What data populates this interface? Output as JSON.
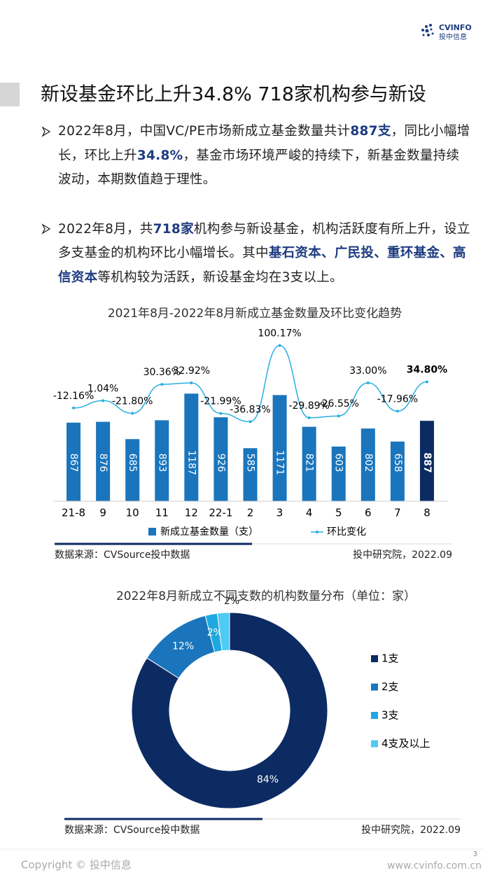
{
  "header": {
    "logo_top": "CVINFO",
    "logo_bottom": "投中信息"
  },
  "title": "新设基金环比上升34.8% 718家机构参与新设",
  "paragraphs": [
    [
      "2022年8月，中国VC/PE市场新成立基金数量共计",
      "887支",
      "，同比小幅增长，环比上升",
      "34.8%",
      "，基金市场环境严峻的持续下，新基金数量持续波动，本期数值趋于理性。"
    ],
    [
      "2022年8月，共",
      "718家",
      "机构参与新设基金，机构活跃度有所上升，设立多支基金的机构环比小幅增长。其中",
      "基石资本、广民投、重环基金、高信资本",
      "等机构较为活跃，新设基金均在3支以上。"
    ]
  ],
  "chart_data": [
    {
      "type": "bar",
      "title": "2021年8月-2022年8月新成立基金数量及环比变化趋势",
      "categories": [
        "21-8",
        "9",
        "10",
        "11",
        "12",
        "22-1",
        "2",
        "3",
        "4",
        "5",
        "6",
        "7",
        "8"
      ],
      "ylim": [
        0,
        1900
      ],
      "y2lim": [
        -180,
        130
      ],
      "series": [
        {
          "name": "新成立基金数量（支）",
          "type": "bar",
          "color": "#1a75bc",
          "colors": [
            "#1a75bc",
            "#1a75bc",
            "#1a75bc",
            "#1a75bc",
            "#1a75bc",
            "#1a75bc",
            "#1a75bc",
            "#1a75bc",
            "#1a75bc",
            "#1a75bc",
            "#1a75bc",
            "#1a75bc",
            "#0d2b63"
          ],
          "values": [
            867,
            876,
            685,
            893,
            1187,
            926,
            585,
            1171,
            821,
            603,
            802,
            658,
            887
          ]
        },
        {
          "name": "环比变化",
          "type": "line",
          "axis": "y2",
          "color": "#2aaee0",
          "values": [
            -12.16,
            1.04,
            -21.8,
            30.36,
            32.92,
            -21.99,
            -36.83,
            100.17,
            -29.89,
            -26.55,
            33.0,
            -17.96,
            34.8
          ],
          "value_labels": [
            "-12.16%",
            "1.04%",
            "-21.80%",
            "30.36%",
            "32.92%",
            "-21.99%",
            "-36.83%",
            "100.17%",
            "-29.89%",
            "-26.55%",
            "33.00%",
            "-17.96%",
            "34.80%"
          ]
        }
      ],
      "source": "数据来源：CVSource投中数据",
      "credit": "投中研究院，2022.09"
    },
    {
      "type": "pie",
      "title": "2022年8月新成立不同支数的机构数量分布（单位：家）",
      "categories": [
        "1支",
        "2支",
        "3支",
        "4支及以上"
      ],
      "values": [
        84,
        12,
        2,
        2
      ],
      "value_labels": [
        "84%",
        "12%",
        "2%",
        "2%"
      ],
      "colors": [
        "#0d2b63",
        "#1a75bc",
        "#1fa8e0",
        "#4fcaf2"
      ],
      "source": "数据来源：CVSource投中数据",
      "credit": "投中研究院，2022.09"
    }
  ],
  "footer": {
    "copyright": "Copyright © 投中信息",
    "website": "www.cvinfo.com.cn",
    "page": "3"
  }
}
